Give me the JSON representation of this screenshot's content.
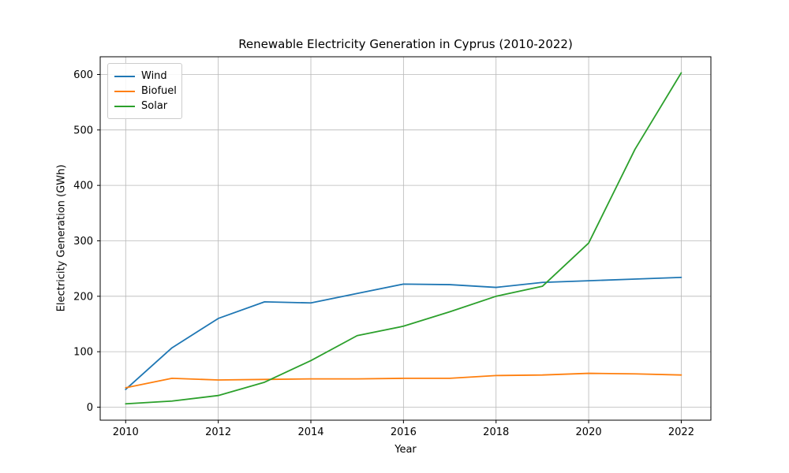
{
  "chart_data": {
    "type": "line",
    "title": "Renewable Electricity Generation in Cyprus (2010-2022)",
    "xlabel": "Year",
    "ylabel": "Electricity Generation (GWh)",
    "x": [
      2010,
      2011,
      2012,
      2013,
      2014,
      2015,
      2016,
      2017,
      2018,
      2019,
      2020,
      2021,
      2022
    ],
    "series": [
      {
        "name": "Wind",
        "color": "#1f77b4",
        "values": [
          32,
          107,
          160,
          190,
          188,
          205,
          222,
          221,
          216,
          225,
          228,
          231,
          234
        ]
      },
      {
        "name": "Biofuel",
        "color": "#ff7f0e",
        "values": [
          35,
          52,
          49,
          50,
          51,
          51,
          52,
          52,
          57,
          58,
          61,
          60,
          58
        ]
      },
      {
        "name": "Solar",
        "color": "#2ca02c",
        "values": [
          6,
          11,
          21,
          45,
          84,
          129,
          146,
          172,
          200,
          218,
          296,
          465,
          603
        ]
      }
    ],
    "xticks": [
      2010,
      2012,
      2014,
      2016,
      2018,
      2020,
      2022
    ],
    "yticks": [
      0,
      100,
      200,
      300,
      400,
      500,
      600
    ],
    "xlim": [
      2009.45,
      2022.64
    ],
    "ylim": [
      -23.5,
      632
    ],
    "grid": true,
    "grid_color": "#b8b8b8",
    "legend_position": "upper left",
    "background": "#ffffff"
  }
}
